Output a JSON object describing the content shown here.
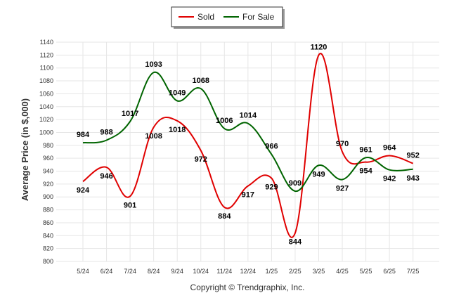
{
  "chart_data": {
    "type": "line",
    "categories": [
      "5/24",
      "6/24",
      "7/24",
      "8/24",
      "9/24",
      "10/24",
      "11/24",
      "12/24",
      "1/25",
      "2/25",
      "3/25",
      "4/25",
      "5/25",
      "6/25",
      "7/25"
    ],
    "series": [
      {
        "name": "Sold",
        "color": "#e00000",
        "values": [
          924,
          946,
          901,
          1008,
          1018,
          972,
          884,
          917,
          929,
          844,
          1120,
          970,
          954,
          964,
          952
        ]
      },
      {
        "name": "For Sale",
        "color": "#006400",
        "values": [
          984,
          988,
          1017,
          1093,
          1049,
          1068,
          1006,
          1014,
          966,
          909,
          949,
          927,
          961,
          942,
          943
        ]
      }
    ],
    "ylabel": "Average Price (in $,000)",
    "ylim": [
      800,
      1140
    ],
    "ytick_step": 20,
    "grid": true,
    "legend": "top-center",
    "line_style": "smooth"
  },
  "footer": {
    "copyright": "Copyright © Trendgraphix, Inc."
  }
}
